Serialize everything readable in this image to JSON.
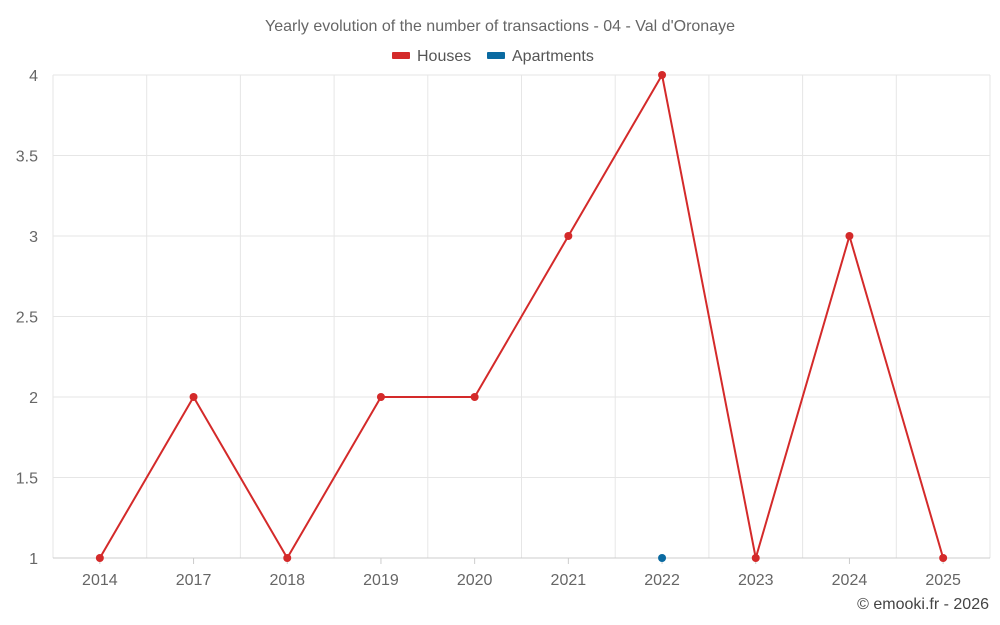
{
  "chart_data": {
    "type": "line",
    "title": "Yearly evolution of the number of transactions - 04 - Val d'Oronaye",
    "categories": [
      "2014",
      "2017",
      "2018",
      "2019",
      "2020",
      "2021",
      "2022",
      "2023",
      "2024",
      "2025"
    ],
    "series": [
      {
        "name": "Houses",
        "color": "#d42a2a",
        "values": [
          1,
          2,
          1,
          2,
          2,
          3,
          4,
          1,
          3,
          1
        ]
      },
      {
        "name": "Apartments",
        "color": "#0a6aa1",
        "values": [
          null,
          null,
          null,
          null,
          null,
          null,
          1,
          null,
          null,
          null
        ]
      }
    ],
    "yticks": [
      "1",
      "1.5",
      "2",
      "2.5",
      "3",
      "3.5",
      "4"
    ],
    "ylim": [
      1,
      4
    ],
    "grid": true,
    "legend": "top-center",
    "xlabel": "",
    "ylabel": ""
  },
  "credit": "© emooki.fr - 2026"
}
